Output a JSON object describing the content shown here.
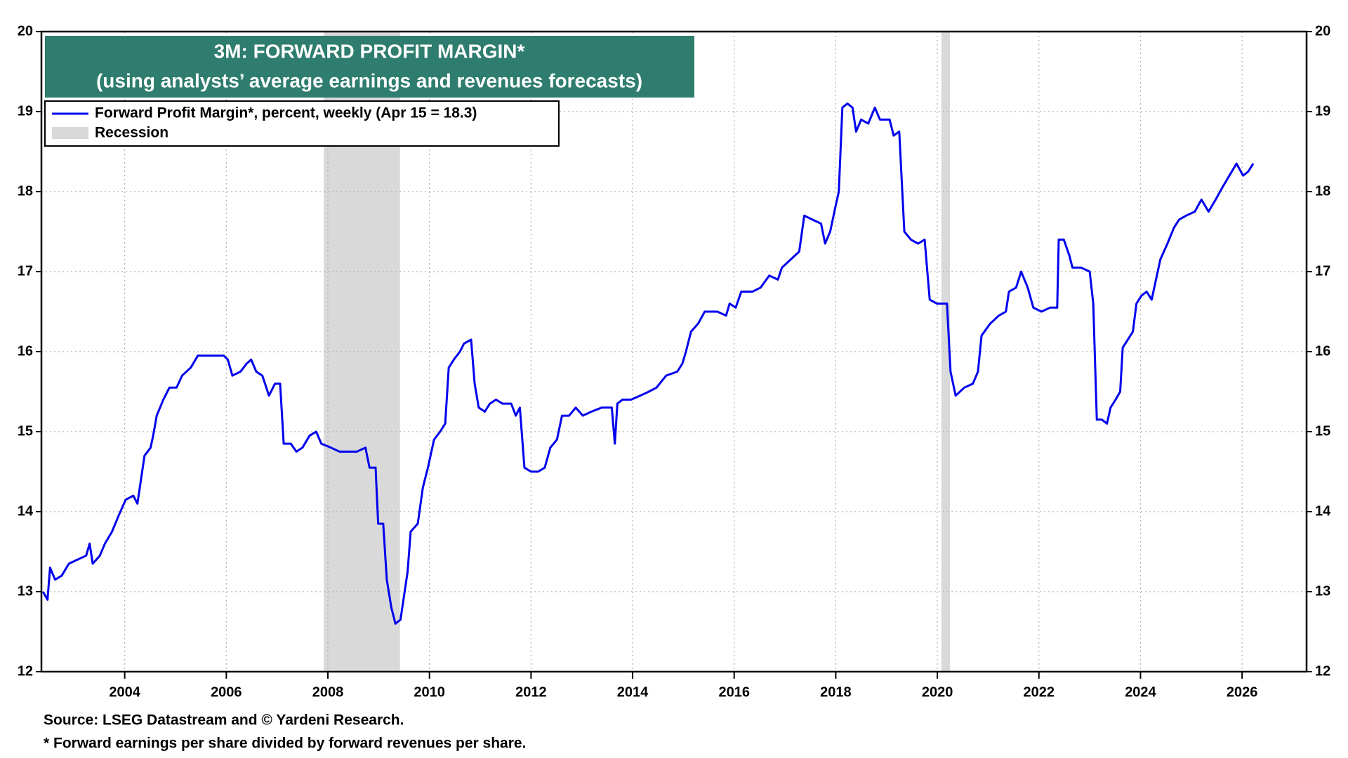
{
  "chart_data": {
    "type": "line",
    "title": "3M: FORWARD PROFIT MARGIN*",
    "subtitle": "(using analysts’ average earnings and revenues forecasts)",
    "notes": [
      "Source: LSEG Datastream and © Yardeni Research.",
      "* Forward earnings per share divided by forward revenues per share."
    ],
    "recession_label": "Recession",
    "recession_color": "#d9d9d9",
    "recessions": [
      [
        2007.92,
        2009.42
      ],
      [
        2020.08,
        2020.25
      ]
    ],
    "xlim": [
      2002.36,
      2027.27
    ],
    "xticks": [
      2004,
      2006,
      2008,
      2010,
      2012,
      2014,
      2016,
      2018,
      2020,
      2022,
      2024,
      2026
    ],
    "ylim": [
      12,
      20
    ],
    "yticks": [
      12,
      13,
      14,
      15,
      16,
      17,
      18,
      19,
      20
    ],
    "grid": true,
    "legend": "upper left",
    "x": [
      2002.39,
      2002.48,
      2002.53,
      2002.63,
      2002.76,
      2002.9,
      2003.07,
      2003.24,
      2003.31,
      2003.37,
      2003.51,
      2003.61,
      2003.75,
      2003.88,
      2004.02,
      2004.17,
      2004.25,
      2004.39,
      2004.51,
      2004.56,
      2004.63,
      2004.76,
      2004.88,
      2005.02,
      2005.13,
      2005.3,
      2005.44,
      2005.69,
      2005.95,
      2006.03,
      2006.12,
      2006.28,
      2006.4,
      2006.49,
      2006.59,
      2006.71,
      2006.84,
      2006.96,
      2007.06,
      2007.13,
      2007.27,
      2007.38,
      2007.5,
      2007.64,
      2007.77,
      2007.87,
      2008.06,
      2008.23,
      2008.4,
      2008.57,
      2008.74,
      2008.82,
      2008.94,
      2008.99,
      2009.09,
      2009.16,
      2009.25,
      2009.33,
      2009.43,
      2009.5,
      2009.57,
      2009.63,
      2009.77,
      2009.87,
      2009.97,
      2010.09,
      2010.21,
      2010.31,
      2010.38,
      2010.48,
      2010.6,
      2010.68,
      2010.82,
      2010.89,
      2010.97,
      2011.09,
      2011.19,
      2011.31,
      2011.44,
      2011.61,
      2011.7,
      2011.78,
      2011.87,
      2012.0,
      2012.14,
      2012.27,
      2012.38,
      2012.51,
      2012.61,
      2012.75,
      2012.88,
      2013.02,
      2013.19,
      2013.39,
      2013.59,
      2013.65,
      2013.7,
      2013.8,
      2013.97,
      2014.15,
      2014.32,
      2014.47,
      2014.66,
      2014.88,
      2014.98,
      2015.05,
      2015.15,
      2015.29,
      2015.42,
      2015.67,
      2015.84,
      2015.91,
      2016.03,
      2016.14,
      2016.36,
      2016.52,
      2016.69,
      2016.86,
      2016.94,
      2017.11,
      2017.28,
      2017.38,
      2017.54,
      2017.71,
      2017.79,
      2017.89,
      2017.99,
      2018.06,
      2018.13,
      2018.23,
      2018.33,
      2018.4,
      2018.5,
      2018.64,
      2018.77,
      2018.87,
      2019.06,
      2019.14,
      2019.25,
      2019.35,
      2019.48,
      2019.62,
      2019.75,
      2019.85,
      2019.99,
      2020.19,
      2020.26,
      2020.36,
      2020.53,
      2020.7,
      2020.8,
      2020.87,
      2021.04,
      2021.21,
      2021.35,
      2021.41,
      2021.55,
      2021.65,
      2021.78,
      2021.89,
      2022.05,
      2022.22,
      2022.36,
      2022.39,
      2022.49,
      2022.6,
      2022.66,
      2022.83,
      2023.0,
      2023.07,
      2023.14,
      2023.24,
      2023.34,
      2023.41,
      2023.51,
      2023.6,
      2023.65,
      2023.75,
      2023.85,
      2023.92,
      2024.02,
      2024.12,
      2024.22,
      2024.39,
      2024.53,
      2024.66,
      2024.76,
      2024.9,
      2025.07,
      2025.2,
      2025.34,
      2025.48,
      2025.61,
      2025.75,
      2025.89,
      2026.02,
      2026.12,
      2026.22
    ],
    "series": [
      {
        "name": "Forward Profit Margin*, percent, weekly (Apr 15 = 18.3)",
        "color": "#0000ee",
        "values": [
          13.0,
          12.9,
          13.3,
          13.15,
          13.2,
          13.35,
          13.4,
          13.45,
          13.6,
          13.35,
          13.45,
          13.6,
          13.75,
          13.95,
          14.15,
          14.2,
          14.1,
          14.7,
          14.8,
          14.95,
          15.2,
          15.4,
          15.55,
          15.55,
          15.7,
          15.8,
          15.95,
          15.95,
          15.95,
          15.9,
          15.7,
          15.75,
          15.85,
          15.9,
          15.75,
          15.7,
          15.45,
          15.6,
          15.6,
          14.85,
          14.85,
          14.75,
          14.8,
          14.95,
          15.0,
          14.85,
          14.8,
          14.75,
          14.75,
          14.75,
          14.8,
          14.55,
          14.55,
          13.85,
          13.85,
          13.15,
          12.8,
          12.6,
          12.65,
          12.95,
          13.25,
          13.75,
          13.85,
          14.3,
          14.55,
          14.9,
          15.0,
          15.1,
          15.8,
          15.9,
          16.0,
          16.1,
          16.15,
          15.6,
          15.3,
          15.25,
          15.35,
          15.4,
          15.35,
          15.35,
          15.2,
          15.3,
          14.55,
          14.5,
          14.5,
          14.55,
          14.8,
          14.9,
          15.2,
          15.2,
          15.3,
          15.2,
          15.25,
          15.3,
          15.3,
          14.85,
          15.35,
          15.4,
          15.4,
          15.45,
          15.5,
          15.55,
          15.7,
          15.75,
          15.85,
          16.0,
          16.25,
          16.35,
          16.5,
          16.5,
          16.45,
          16.6,
          16.55,
          16.75,
          16.75,
          16.8,
          16.95,
          16.9,
          17.05,
          17.15,
          17.25,
          17.7,
          17.65,
          17.6,
          17.35,
          17.5,
          17.8,
          18.0,
          19.05,
          19.1,
          19.05,
          18.75,
          18.9,
          18.85,
          19.05,
          18.9,
          18.9,
          18.7,
          18.75,
          17.5,
          17.4,
          17.35,
          17.4,
          16.65,
          16.6,
          16.6,
          15.75,
          15.45,
          15.55,
          15.6,
          15.75,
          16.2,
          16.35,
          16.45,
          16.5,
          16.75,
          16.8,
          17.0,
          16.8,
          16.55,
          16.5,
          16.55,
          16.55,
          17.4,
          17.4,
          17.2,
          17.05,
          17.05,
          17.0,
          16.6,
          15.15,
          15.15,
          15.1,
          15.3,
          15.4,
          15.5,
          16.05,
          16.15,
          16.25,
          16.6,
          16.7,
          16.75,
          16.65,
          17.15,
          17.35,
          17.55,
          17.65,
          17.7,
          17.75,
          17.9,
          17.75,
          17.9,
          18.05,
          18.2,
          18.35,
          18.2,
          18.25,
          18.35
        ]
      }
    ]
  }
}
